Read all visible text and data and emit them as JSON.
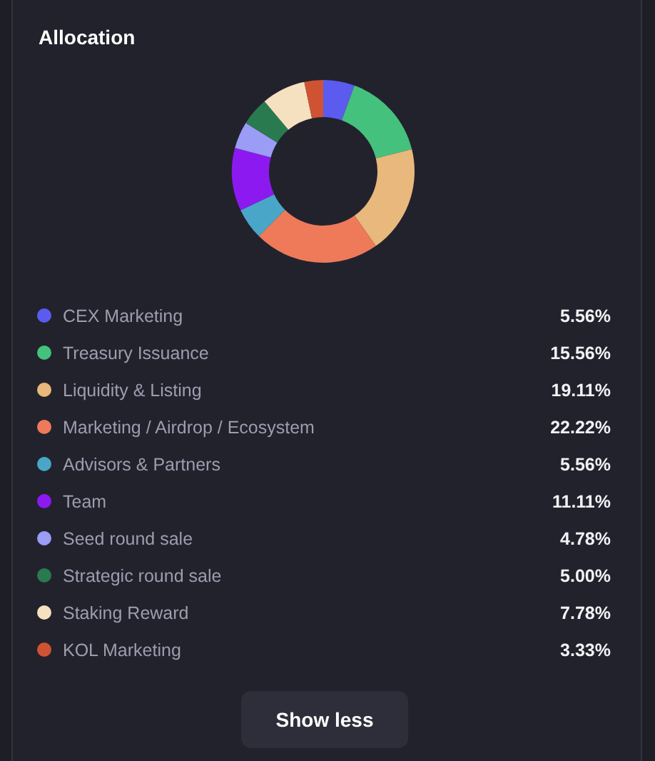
{
  "chart_data": {
    "type": "donut",
    "title": "Allocation",
    "categories": [
      "CEX Marketing",
      "Treasury Issuance",
      "Liquidity & Listing",
      "Marketing / Airdrop / Ecosystem",
      "Advisors & Partners",
      "Team",
      "Seed round sale",
      "Strategic round sale",
      "Staking Reward",
      "KOL Marketing"
    ],
    "values": [
      5.56,
      15.56,
      19.11,
      22.22,
      5.56,
      11.11,
      4.78,
      5.0,
      7.78,
      3.33
    ],
    "colors": [
      "#5b5bf0",
      "#45c17e",
      "#e8b87c",
      "#ee7a5a",
      "#4aa6c8",
      "#8c1af0",
      "#9a9cf5",
      "#2a7a50",
      "#f5e0c0",
      "#cf5333"
    ],
    "value_labels": [
      "5.56%",
      "15.56%",
      "19.11%",
      "22.22%",
      "5.56%",
      "11.11%",
      "4.78%",
      "5.00%",
      "7.78%",
      "3.33%"
    ],
    "legend": "bottom",
    "annotations": [
      "Show less"
    ]
  }
}
